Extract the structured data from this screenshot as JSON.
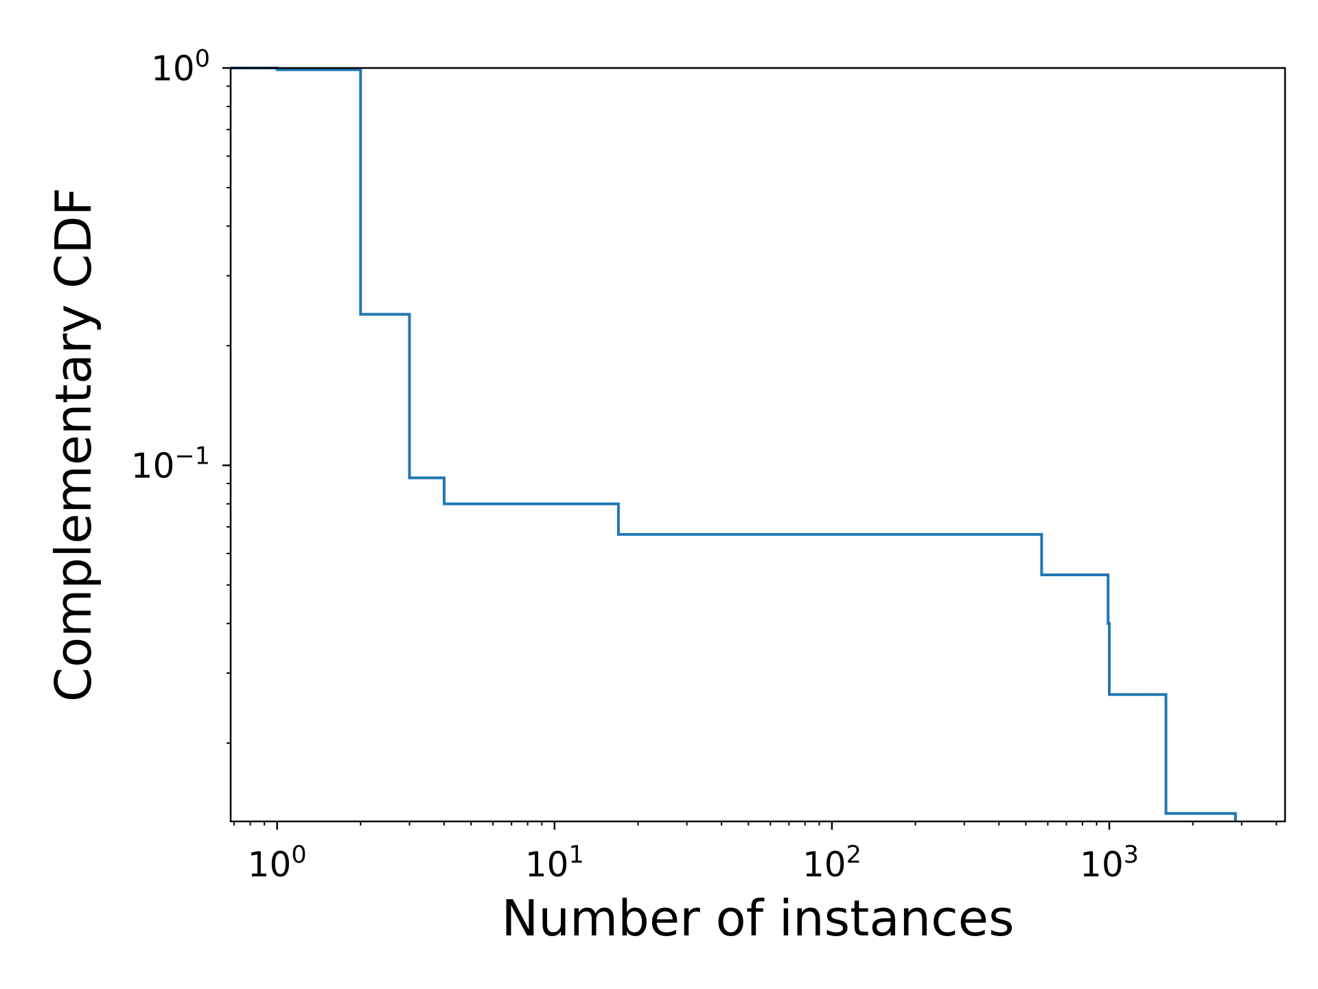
{
  "chart_data": {
    "type": "line",
    "drawstyle": "step",
    "xscale": "log",
    "yscale": "log",
    "xlabel": "Number of instances",
    "ylabel": "Complementary CDF",
    "xlim": [
      0.68,
      4300
    ],
    "ylim": [
      0.0127,
      1.0
    ],
    "grid": false,
    "line_color": "#1f77b4",
    "x_ticks": [
      {
        "value": 1,
        "base": "10",
        "exp": "0"
      },
      {
        "value": 10,
        "base": "10",
        "exp": "1"
      },
      {
        "value": 100,
        "base": "10",
        "exp": "2"
      },
      {
        "value": 1000,
        "base": "10",
        "exp": "3"
      }
    ],
    "y_ticks": [
      {
        "value": 1,
        "base": "10",
        "exp": "0"
      },
      {
        "value": 0.1,
        "base": "10",
        "exp": "−1"
      }
    ],
    "series": [
      {
        "points": [
          {
            "x": 0.68,
            "y": 1.0
          },
          {
            "x": 1,
            "y": 0.99
          },
          {
            "x": 2,
            "y": 0.24
          },
          {
            "x": 3,
            "y": 0.093
          },
          {
            "x": 4,
            "y": 0.08
          },
          {
            "x": 17,
            "y": 0.067
          },
          {
            "x": 570,
            "y": 0.053
          },
          {
            "x": 990,
            "y": 0.04
          },
          {
            "x": 1000,
            "y": 0.0265
          },
          {
            "x": 1600,
            "y": 0.0133
          },
          {
            "x": 2850,
            "y": 0.0127
          }
        ]
      }
    ]
  }
}
